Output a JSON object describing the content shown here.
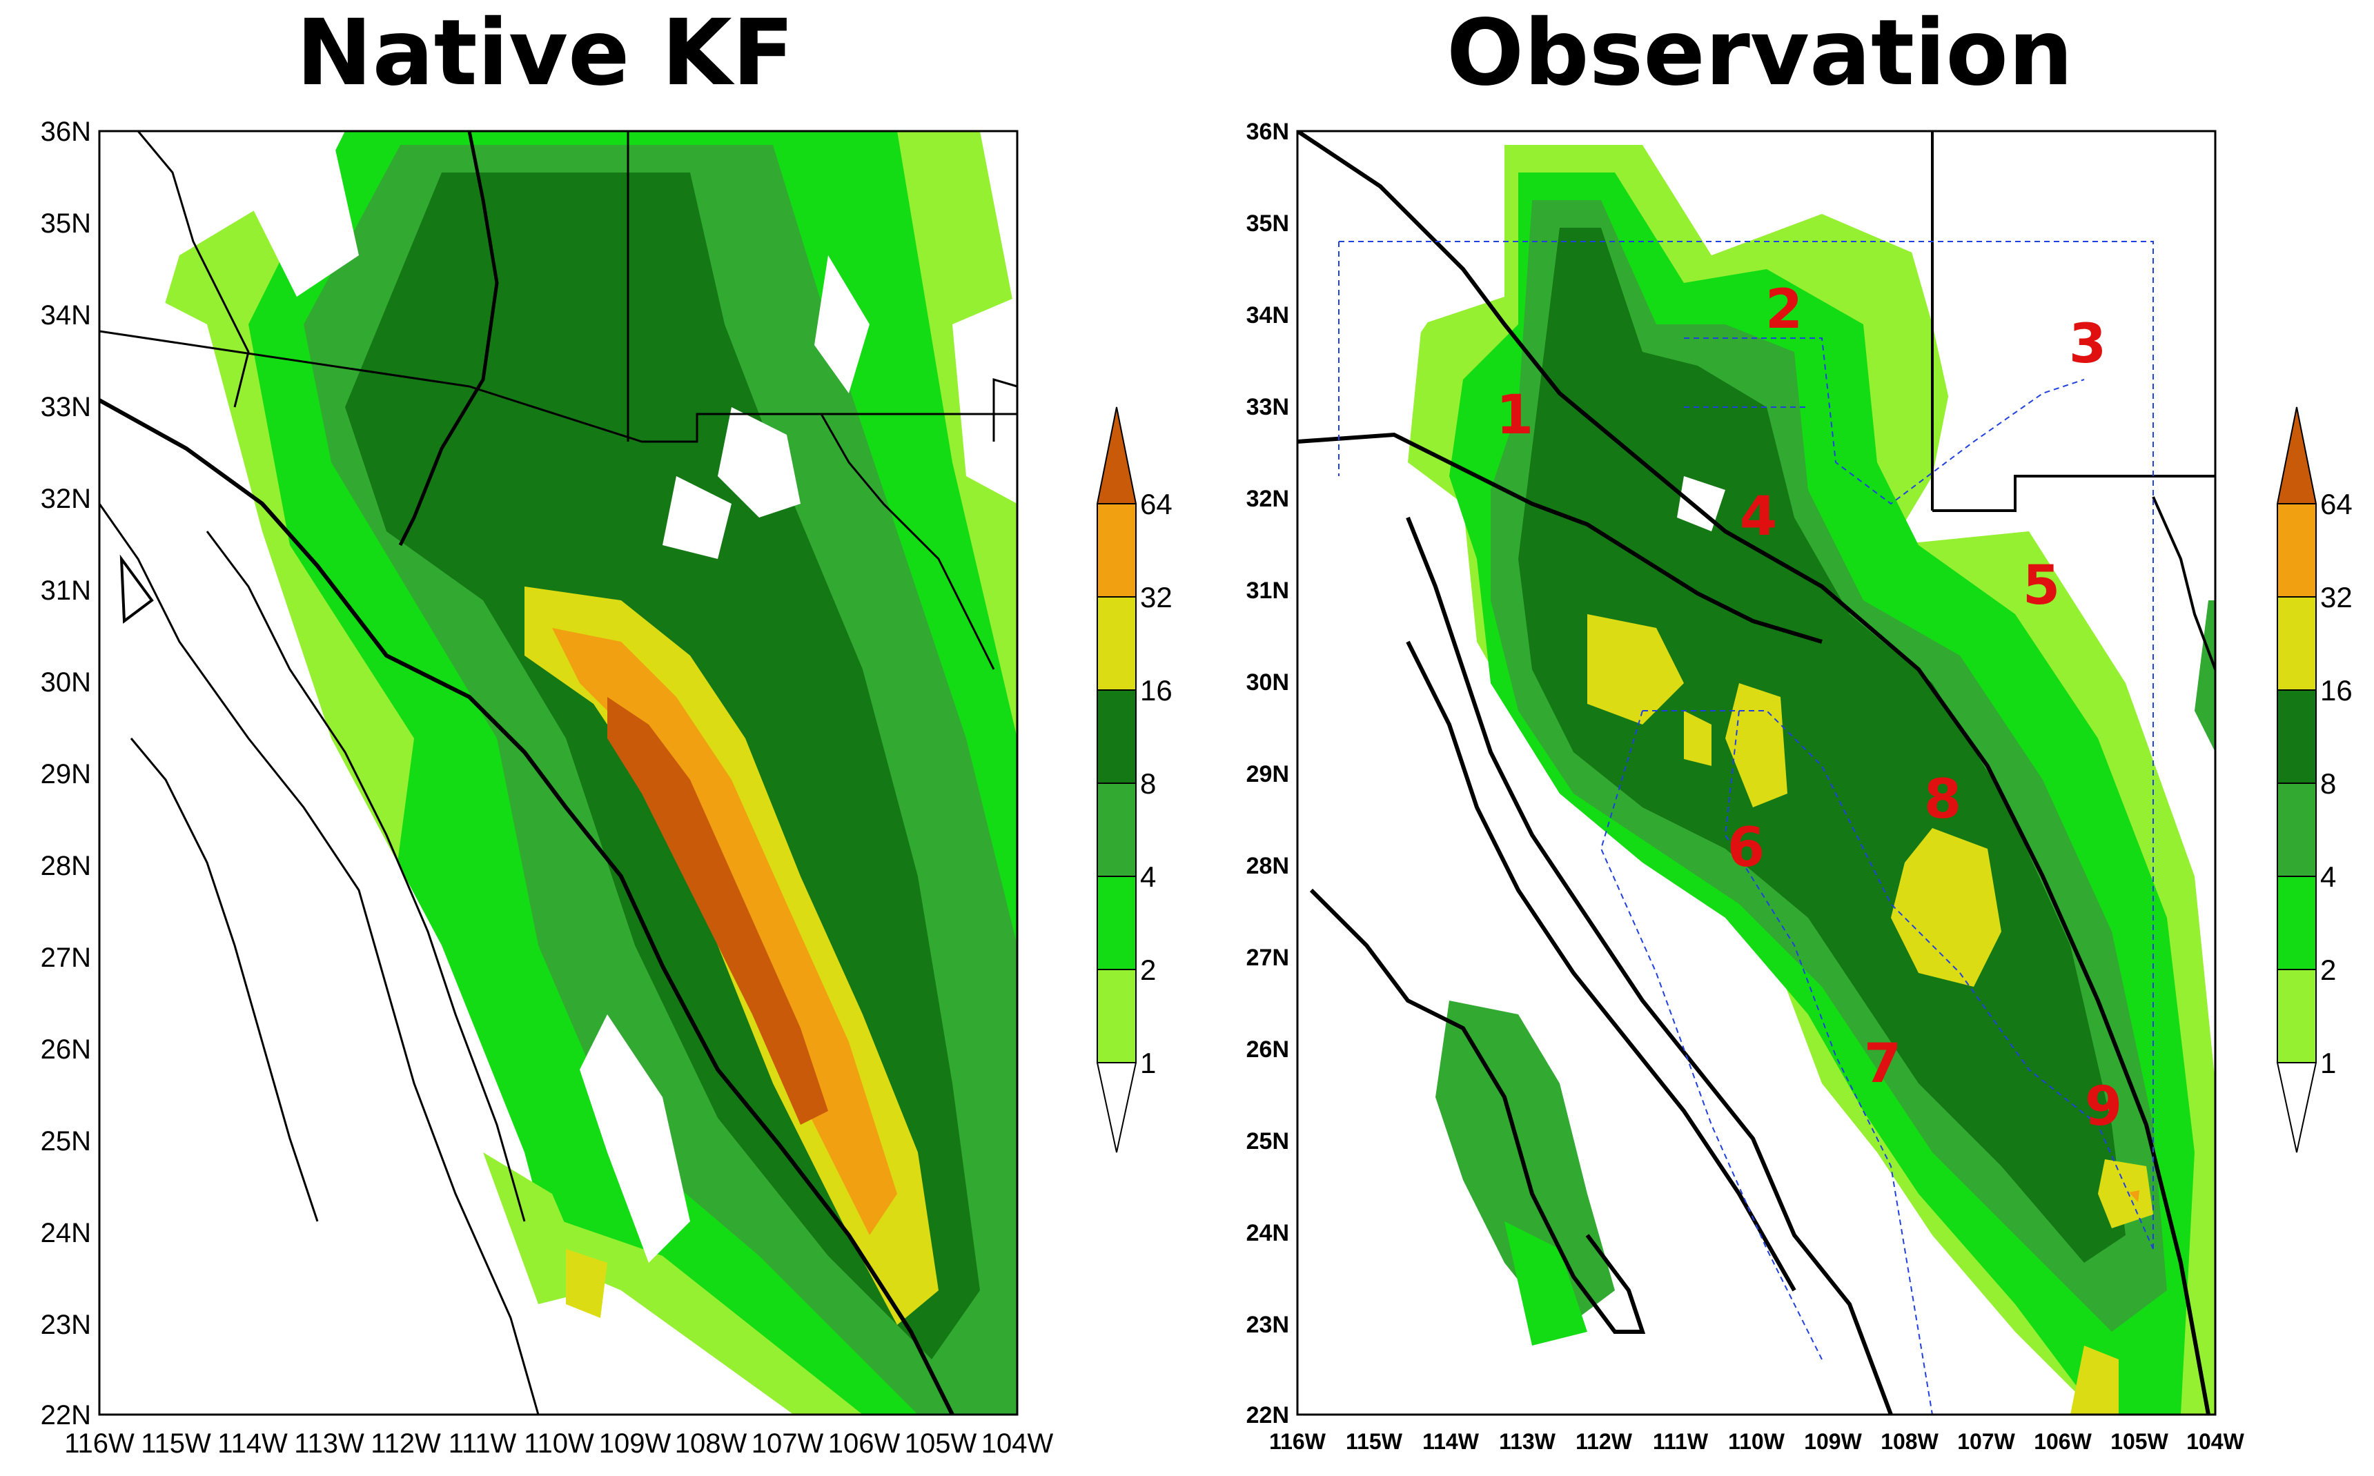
{
  "panels": [
    {
      "title": "Native KF",
      "lat_labels": [
        "36N",
        "35N",
        "34N",
        "33N",
        "32N",
        "31N",
        "30N",
        "29N",
        "28N",
        "27N",
        "26N",
        "25N",
        "24N",
        "23N",
        "22N"
      ],
      "lon_labels": [
        "116W",
        "115W",
        "114W",
        "113W",
        "112W",
        "111W",
        "110W",
        "109W",
        "108W",
        "107W",
        "106W",
        "105W",
        "104W"
      ],
      "region_labels": []
    },
    {
      "title": "Observation",
      "lat_labels": [
        "36N",
        "35N",
        "34N",
        "33N",
        "32N",
        "31N",
        "30N",
        "29N",
        "28N",
        "27N",
        "26N",
        "25N",
        "24N",
        "23N",
        "22N"
      ],
      "lon_labels": [
        "116W",
        "115W",
        "114W",
        "113W",
        "112W",
        "111W",
        "110W",
        "109W",
        "108W",
        "107W",
        "106W",
        "105W",
        "104W"
      ],
      "region_labels": [
        "1",
        "2",
        "3",
        "4",
        "5",
        "6",
        "7",
        "8",
        "9"
      ]
    }
  ],
  "colorbar": {
    "levels": [
      "64",
      "32",
      "16",
      "8",
      "4",
      "2",
      "1"
    ],
    "colors": [
      "#c85a0a",
      "#f0a010",
      "#f0a010",
      "#dcdc14",
      "#147814",
      "#32aa32",
      "#14dc14",
      "#96f032",
      "#ffffff"
    ]
  },
  "map_extent": {
    "lon_min": -116,
    "lon_max": -104,
    "lat_min": 22,
    "lat_max": 36
  }
}
